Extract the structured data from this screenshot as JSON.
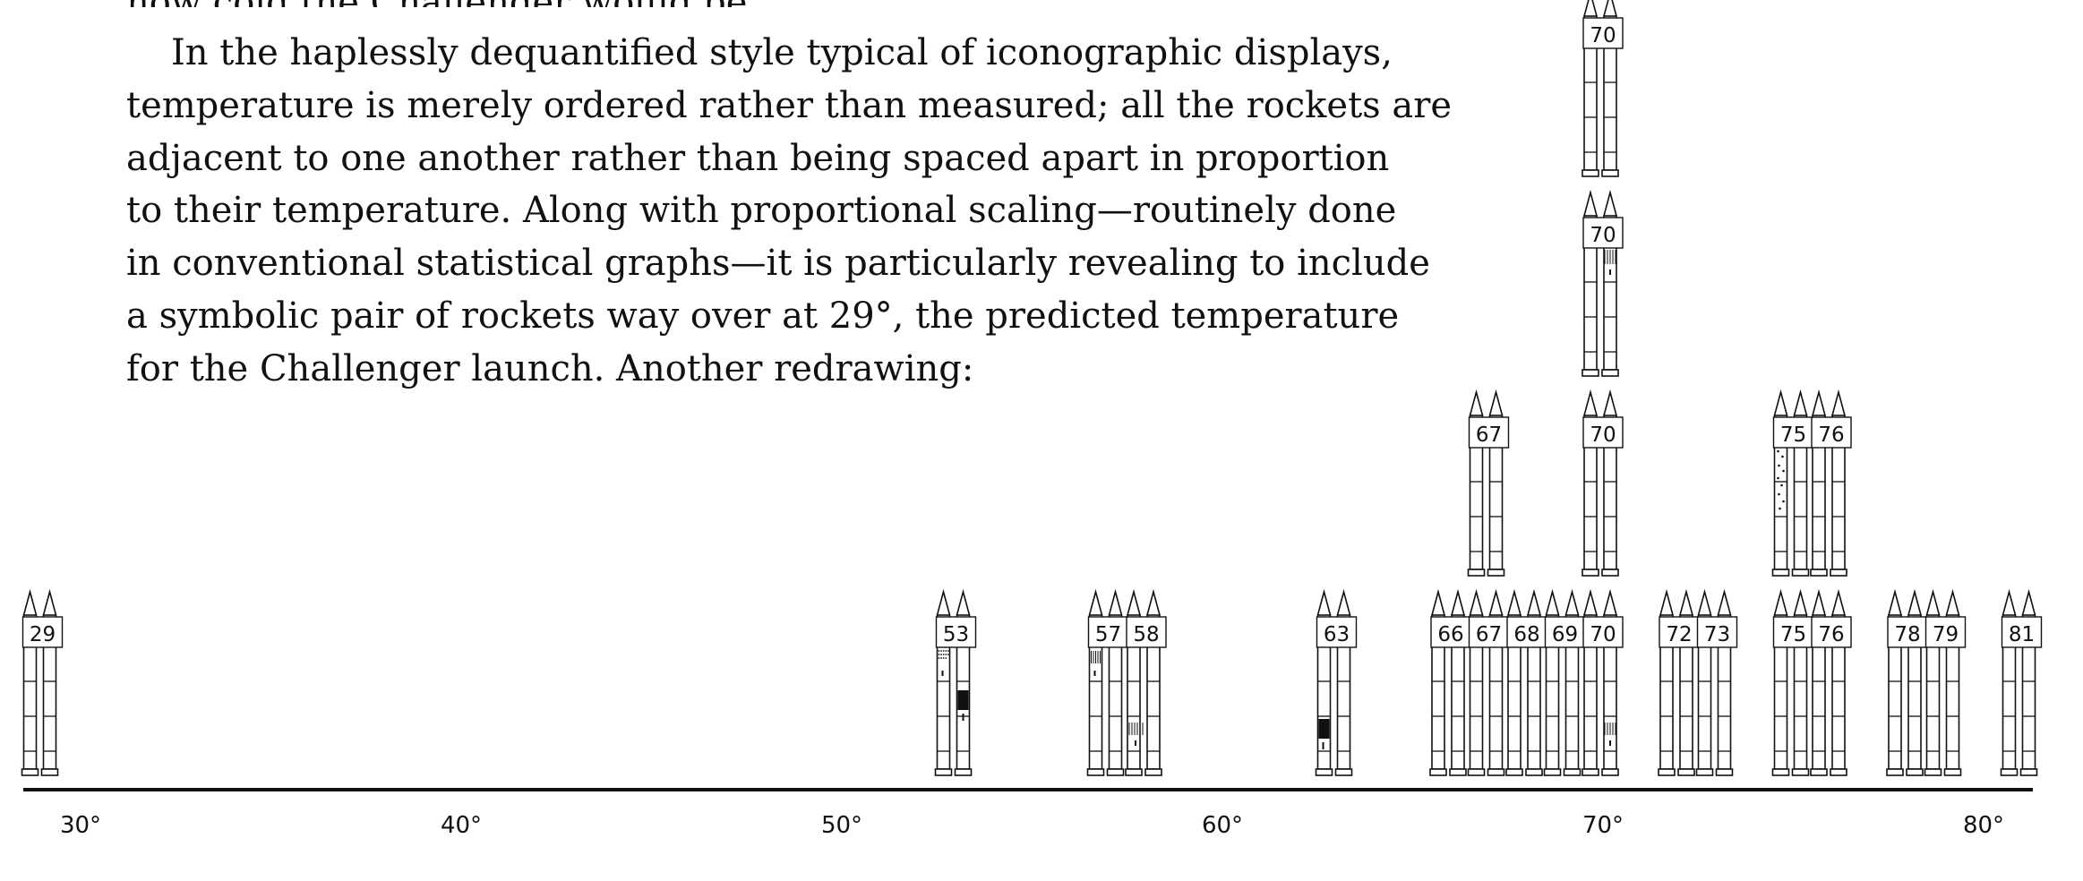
{
  "text": {
    "top_cut_line": "how cold the Challenger would be.",
    "lines": [
      "In the haplessly dequantified style typical of iconographic displays,",
      "temperature is merely ordered rather than measured; all the rockets are",
      "adjacent to one another rather than being spaced apart in proportion",
      "to their temperature. Along with proportional scaling—routinely done",
      "in conventional statistical graphs—it is particularly revealing to include",
      "a symbolic pair of rockets way over at 29°, the predicted temperature",
      "for the Challenger launch. Another redrawing:"
    ]
  },
  "chart_data": {
    "type": "scatter",
    "x_ticks": [
      "30°",
      "40°",
      "50°",
      "60°",
      "70°",
      "80°"
    ],
    "x_tick_values": [
      30,
      40,
      50,
      60,
      70,
      80
    ],
    "xlim": [
      29,
      82
    ],
    "rockets": [
      {
        "temp": 29,
        "label": "29",
        "stack": 0,
        "marks": []
      },
      {
        "temp": 53,
        "label": "53",
        "stack": 0,
        "marks": [
          "dot-left",
          "solid-right"
        ]
      },
      {
        "temp": 57,
        "label": "57",
        "stack": 0,
        "marks": [
          "hatch-left"
        ]
      },
      {
        "temp": 58,
        "label": "58",
        "stack": 0,
        "marks": [
          "hatch-lower"
        ]
      },
      {
        "temp": 63,
        "label": "63",
        "stack": 0,
        "marks": [
          "solid-left-low"
        ]
      },
      {
        "temp": 66,
        "label": "66",
        "stack": 0,
        "marks": []
      },
      {
        "temp": 67,
        "label": "67",
        "stack": 0,
        "marks": []
      },
      {
        "temp": 67,
        "label": "67",
        "stack": 1,
        "marks": []
      },
      {
        "temp": 68,
        "label": "68",
        "stack": 0,
        "marks": []
      },
      {
        "temp": 69,
        "label": "69",
        "stack": 0,
        "marks": []
      },
      {
        "temp": 70,
        "label": "70",
        "stack": 0,
        "marks": [
          "hatch-lower-right"
        ]
      },
      {
        "temp": 70,
        "label": "70",
        "stack": 1,
        "marks": []
      },
      {
        "temp": 70,
        "label": "70",
        "stack": 2,
        "marks": [
          "hatch-right"
        ]
      },
      {
        "temp": 70,
        "label": "70",
        "stack": 3,
        "marks": []
      },
      {
        "temp": 72,
        "label": "72",
        "stack": 0,
        "marks": []
      },
      {
        "temp": 73,
        "label": "73",
        "stack": 0,
        "marks": []
      },
      {
        "temp": 75,
        "label": "75",
        "stack": 0,
        "marks": []
      },
      {
        "temp": 75,
        "label": "75",
        "stack": 1,
        "marks": [
          "dots-left"
        ]
      },
      {
        "temp": 76,
        "label": "76",
        "stack": 0,
        "marks": []
      },
      {
        "temp": 76,
        "label": "76",
        "stack": 1,
        "marks": []
      },
      {
        "temp": 78,
        "label": "78",
        "stack": 0,
        "marks": []
      },
      {
        "temp": 79,
        "label": "79",
        "stack": 0,
        "marks": []
      },
      {
        "temp": 81,
        "label": "81",
        "stack": 0,
        "marks": []
      }
    ]
  }
}
